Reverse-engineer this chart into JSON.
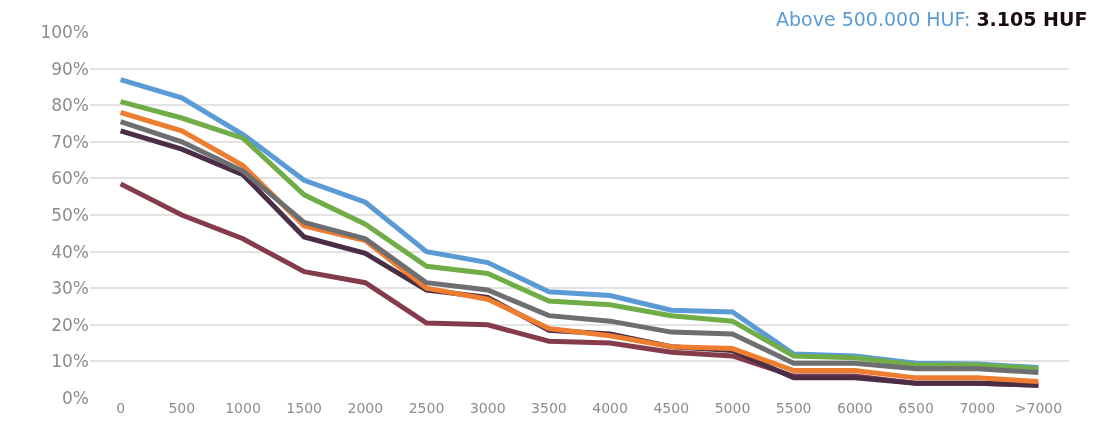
{
  "chart_data": {
    "type": "line",
    "categories": [
      "0",
      "500",
      "1000",
      "1500",
      "2000",
      "2500",
      "3000",
      "3500",
      "4000",
      "4500",
      "5000",
      "5500",
      "6000",
      "6500",
      "7000",
      ">7000"
    ],
    "series": [
      {
        "name": "Above 500.000 HUF:",
        "color": "#5b9bd5",
        "values": [
          87,
          82,
          72,
          59.5,
          53.5,
          40,
          37,
          29,
          28,
          24,
          23.5,
          12,
          11.5,
          9.5,
          9.3,
          8.3
        ]
      },
      {
        "color": "#70ad47",
        "values": [
          81,
          76.5,
          71,
          55.5,
          47.5,
          36,
          34,
          26.5,
          25.5,
          22.5,
          21,
          11.5,
          11,
          9,
          9,
          8
        ]
      },
      {
        "color": "#843c4c",
        "values": [
          58.5,
          50,
          43.5,
          34.5,
          31.5,
          20.5,
          20,
          15.5,
          15,
          12.5,
          11.5,
          6,
          6,
          4,
          4,
          3.5
        ]
      },
      {
        "color": "#4b2d45",
        "values": [
          73,
          68,
          61,
          44,
          39.5,
          29.5,
          27.5,
          18.5,
          17.5,
          14,
          13,
          5.5,
          5.5,
          4,
          4,
          3.5
        ]
      },
      {
        "color": "#ed7d31",
        "values": [
          78,
          73,
          63.5,
          47,
          43,
          30,
          27,
          19,
          17,
          14,
          13.5,
          7.5,
          7.5,
          5.5,
          5.5,
          4.5
        ]
      },
      {
        "color": "#6d6e71",
        "values": [
          75.5,
          70,
          62,
          48,
          43.5,
          31.5,
          29.5,
          22.5,
          21,
          18,
          17.5,
          9.5,
          9.5,
          8,
          8,
          7
        ]
      }
    ],
    "annotations": [
      "3.105 HUF"
    ],
    "ylim": [
      0,
      100
    ],
    "yticks": [
      {
        "value": 0,
        "label": "0%"
      },
      {
        "value": 10,
        "label": "10%"
      },
      {
        "value": 20,
        "label": "20%"
      },
      {
        "value": 30,
        "label": "30%"
      },
      {
        "value": 40,
        "label": "40%"
      },
      {
        "value": 50,
        "label": "50%"
      },
      {
        "value": 60,
        "label": "60%"
      },
      {
        "value": 70,
        "label": "70%"
      },
      {
        "value": 80,
        "label": "80%"
      },
      {
        "value": 90,
        "label": "90%"
      },
      {
        "value": 100,
        "label": "100%"
      }
    ],
    "grid": "y",
    "legend": false,
    "marker": "none",
    "line_style": "solid"
  }
}
